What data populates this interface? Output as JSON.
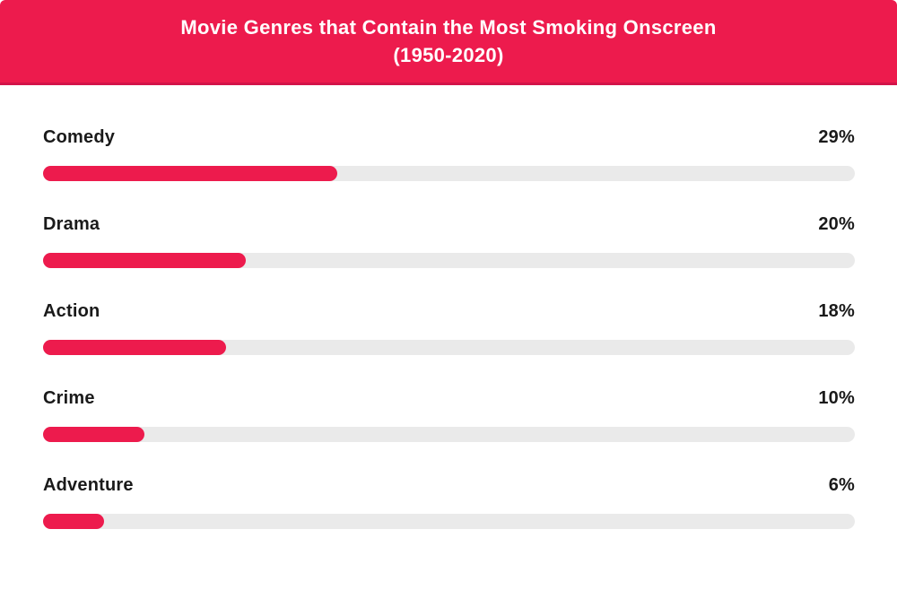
{
  "header": {
    "title_line1": "Movie Genres that Contain the Most Smoking Onscreen",
    "title_line2": "(1950-2020)"
  },
  "colors": {
    "accent": "#ED1B4D",
    "accent_dark": "#D31349",
    "track": "#EAEAEA",
    "text": "#1A1A1A",
    "header_text": "#FFFFFF"
  },
  "chart_data": {
    "type": "bar",
    "orientation": "horizontal",
    "title": "Movie Genres that Contain the Most Smoking Onscreen (1950-2020)",
    "categories": [
      "Comedy",
      "Drama",
      "Action",
      "Crime",
      "Adventure"
    ],
    "values": [
      29,
      20,
      18,
      10,
      6
    ],
    "value_labels": [
      "29%",
      "20%",
      "18%",
      "10%",
      "6%"
    ],
    "unit": "%",
    "xlabel": "",
    "ylabel": "",
    "xlim": [
      0,
      80
    ],
    "grid": false,
    "legend": false,
    "bar_color": "#ED1B4D",
    "track_color": "#EAEAEA",
    "value_label_position": "right-aligned-above-bar"
  }
}
